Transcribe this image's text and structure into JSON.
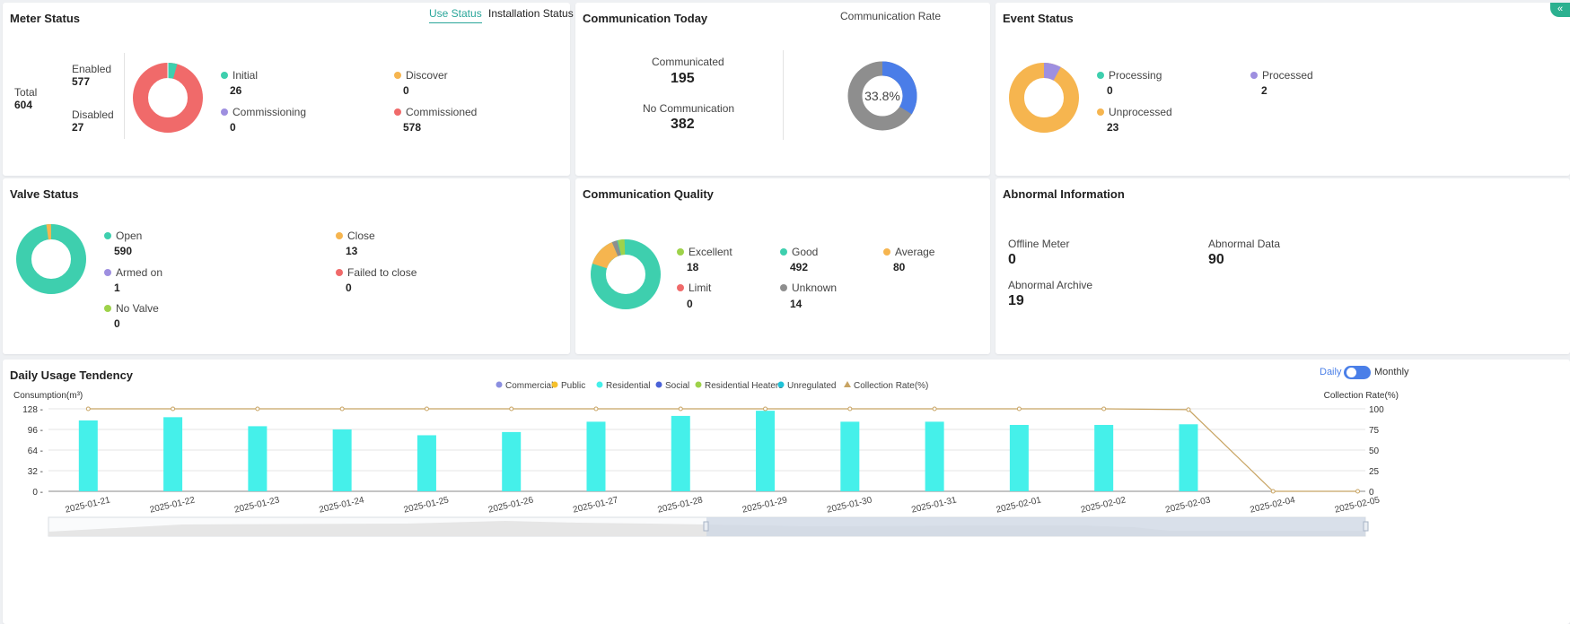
{
  "meter_status": {
    "title": "Meter Status",
    "tabs": [
      "Use Status",
      "Installation Status"
    ],
    "total_label": "Total",
    "total_value": "604",
    "enabled_label": "Enabled",
    "enabled_value": "577",
    "disabled_label": "Disabled",
    "disabled_value": "27",
    "legend": [
      {
        "label": "Initial",
        "value": "26",
        "color": "#3ecfae"
      },
      {
        "label": "Discover",
        "value": "0",
        "color": "#f6b54f"
      },
      {
        "label": "Commissioning",
        "value": "0",
        "color": "#9e8fe0"
      },
      {
        "label": "Commissioned",
        "value": "578",
        "color": "#f06a6a"
      }
    ]
  },
  "communication_today": {
    "title": "Communication Today",
    "rate_title": "Communication Rate",
    "communicated_label": "Communicated",
    "communicated_value": "195",
    "no_comm_label": "No Communication",
    "no_comm_value": "382",
    "rate_text": "33.8%",
    "rate_fraction": 0.338,
    "colors": {
      "communicated": "#4a7de8",
      "none": "#8e8e8e"
    }
  },
  "event_status": {
    "title": "Event Status",
    "legend": [
      {
        "label": "Processing",
        "value": "0",
        "color": "#3ecfae"
      },
      {
        "label": "Processed",
        "value": "2",
        "color": "#9e8fe0"
      },
      {
        "label": "Unprocessed",
        "value": "23",
        "color": "#f6b54f"
      }
    ]
  },
  "valve_status": {
    "title": "Valve Status",
    "legend": [
      {
        "label": "Open",
        "value": "590",
        "color": "#3ecfae"
      },
      {
        "label": "Close",
        "value": "13",
        "color": "#f6b54f"
      },
      {
        "label": "Armed on",
        "value": "1",
        "color": "#9e8fe0"
      },
      {
        "label": "Failed to close",
        "value": "0",
        "color": "#f06a6a"
      },
      {
        "label": "No Valve",
        "value": "0",
        "color": "#9ed24a"
      }
    ]
  },
  "communication_quality": {
    "title": "Communication Quality",
    "legend": [
      {
        "label": "Excellent",
        "value": "18",
        "color": "#9ed24a"
      },
      {
        "label": "Good",
        "value": "492",
        "color": "#3ecfae"
      },
      {
        "label": "Average",
        "value": "80",
        "color": "#f6b54f"
      },
      {
        "label": "Limit",
        "value": "0",
        "color": "#f06a6a"
      },
      {
        "label": "Unknown",
        "value": "14",
        "color": "#8e8e8e"
      }
    ]
  },
  "abnormal_information": {
    "title": "Abnormal Information",
    "offline_label": "Offline Meter",
    "offline_value": "0",
    "abnormal_data_label": "Abnormal Data",
    "abnormal_data_value": "90",
    "abnormal_archive_label": "Abnormal Archive",
    "abnormal_archive_value": "19"
  },
  "daily_usage": {
    "title": "Daily Usage Tendency",
    "toggle_daily": "Daily",
    "toggle_monthly": "Monthly",
    "toggle_state": "daily"
  },
  "chart_data": {
    "type": "bar",
    "title": "Daily Usage Tendency",
    "ylabel": "Consumption(m³)",
    "y2label": "Collection Rate(%)",
    "ylim": [
      0,
      128
    ],
    "y2lim": [
      0,
      100
    ],
    "yticks": [
      "128",
      "96",
      "64",
      "32",
      "0"
    ],
    "y2ticks": [
      "100",
      "75",
      "50",
      "25",
      "0"
    ],
    "legend_placement": "top-center",
    "grid": true,
    "legend": [
      {
        "name": "Commercial",
        "color": "#8b8fe0",
        "shape": "dot"
      },
      {
        "name": "Public",
        "color": "#f5c02b",
        "shape": "dot"
      },
      {
        "name": "Residential",
        "color": "#45f0ea",
        "shape": "dot"
      },
      {
        "name": "Social",
        "color": "#4a62d8",
        "shape": "dot"
      },
      {
        "name": "Residential Heaters",
        "color": "#9ed24a",
        "shape": "dot"
      },
      {
        "name": "Unregulated",
        "color": "#1fc3d8",
        "shape": "dot"
      },
      {
        "name": "Collection Rate(%)",
        "color": "#c8a463",
        "shape": "triangle"
      }
    ],
    "categories": [
      "2025-01-21",
      "2025-01-22",
      "2025-01-23",
      "2025-01-24",
      "2025-01-25",
      "2025-01-26",
      "2025-01-27",
      "2025-01-28",
      "2025-01-29",
      "2025-01-30",
      "2025-01-31",
      "2025-02-01",
      "2025-02-02",
      "2025-02-03",
      "2025-02-04",
      "2025-02-05"
    ],
    "series": [
      {
        "name": "Residential",
        "kind": "bar",
        "color": "#45f0ea",
        "values": [
          110,
          115,
          101,
          96,
          87,
          92,
          108,
          117,
          125,
          108,
          108,
          103,
          103,
          104,
          0,
          0
        ]
      },
      {
        "name": "Collection Rate(%)",
        "kind": "line",
        "axis": "right",
        "color": "#c8a463",
        "values": [
          100,
          100,
          100,
          100,
          100,
          100,
          100,
          100,
          100,
          100,
          100,
          100,
          100,
          99,
          0,
          0
        ]
      }
    ]
  }
}
